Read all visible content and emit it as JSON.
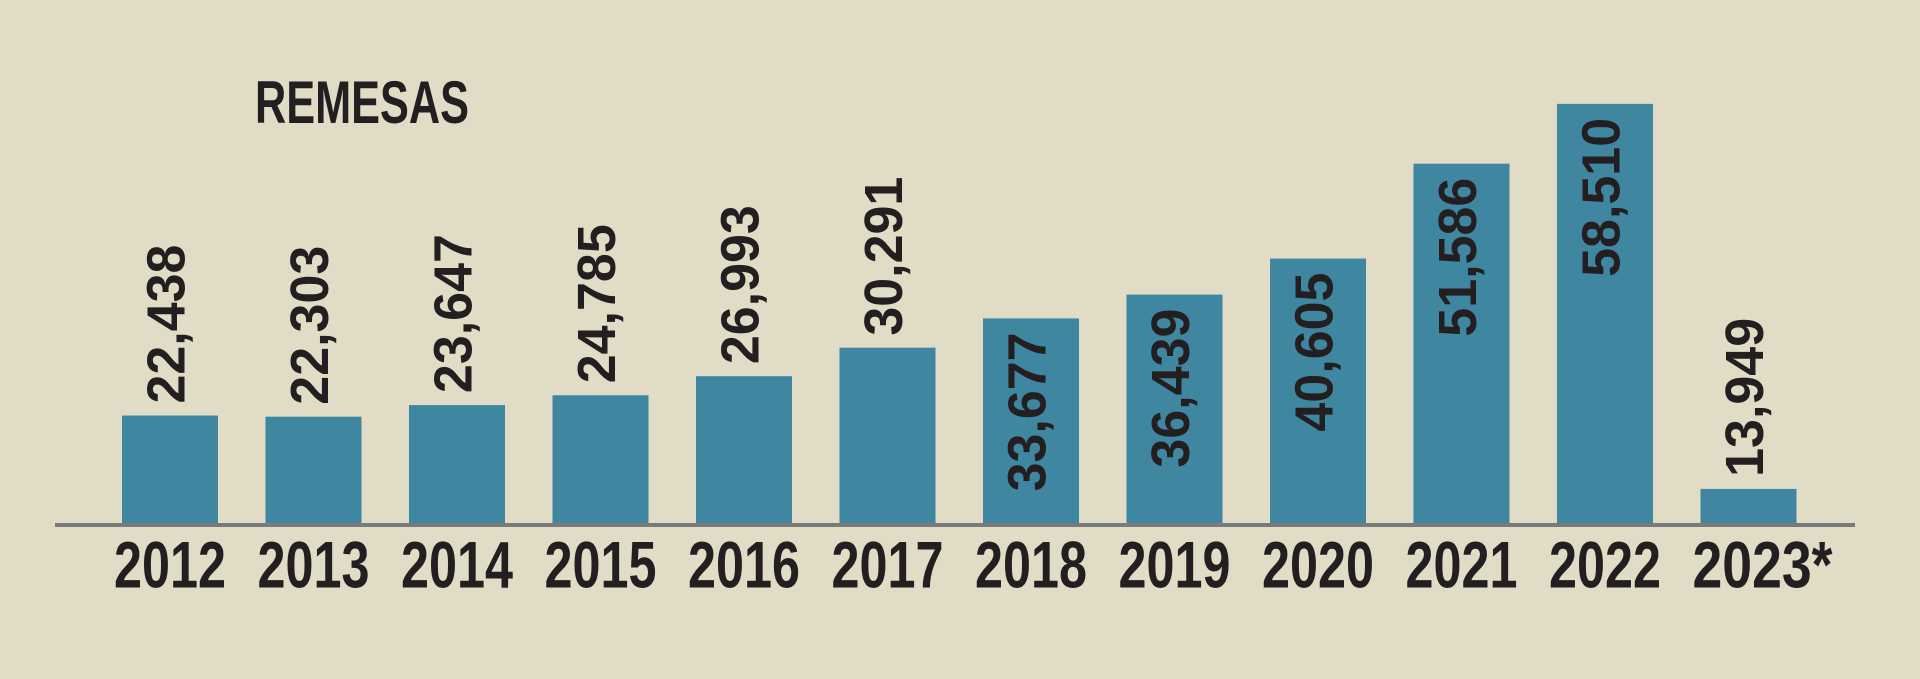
{
  "chart_data": {
    "type": "bar",
    "title": "REMESAS",
    "categories": [
      "2012",
      "2013",
      "2014",
      "2015",
      "2016",
      "2017",
      "2018",
      "2019",
      "2020",
      "2021",
      "2022",
      "2023*"
    ],
    "values": [
      22438,
      22303,
      23647,
      24785,
      26993,
      30291,
      33677,
      36439,
      40605,
      51586,
      58510,
      13949
    ],
    "value_labels": [
      "22,438",
      "22,303",
      "23,647",
      "24,785",
      "26,993",
      "30,291",
      "33,677",
      "36,439",
      "40,605",
      "51,586",
      "58,510",
      "13,949"
    ],
    "color": "#3f86a1",
    "ylim": [
      10000,
      60000
    ]
  }
}
